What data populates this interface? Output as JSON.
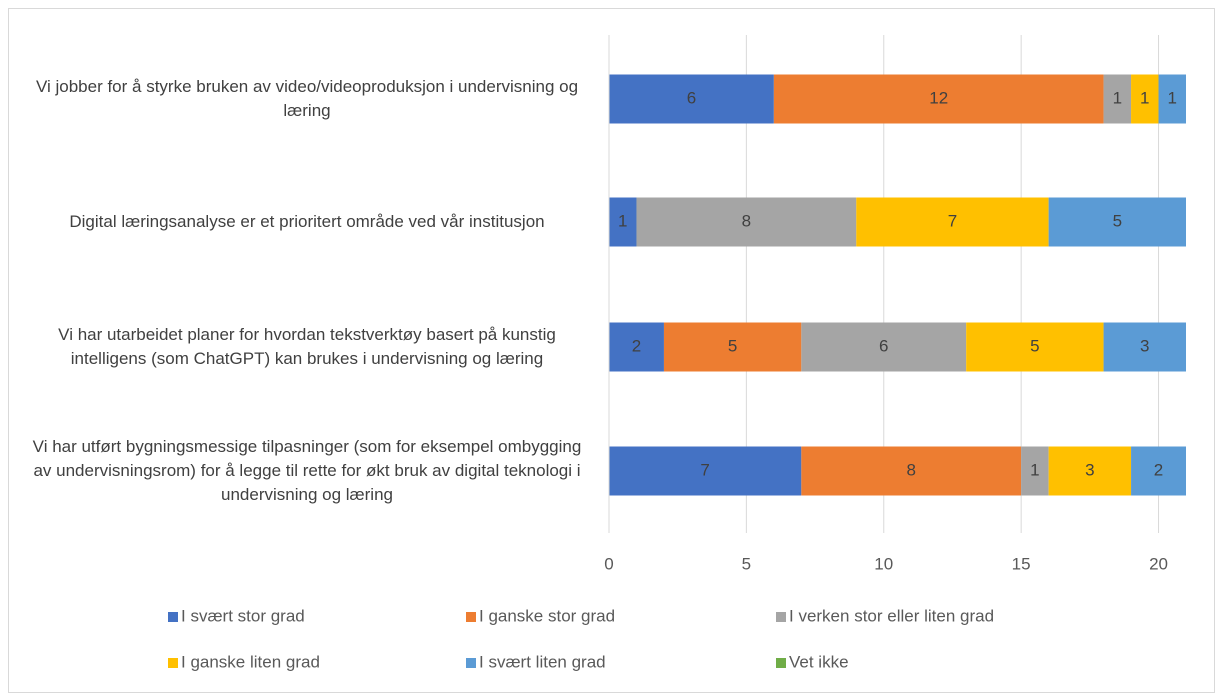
{
  "chart_data": {
    "type": "stacked-barh",
    "categories": [
      "Vi jobber for å styrke bruken av video/videoproduksjon i undervisning og læring",
      "Digital læringsanalyse er et prioritert område ved vår institusjon",
      "Vi har utarbeidet planer for hvordan tekstverktøy basert på kunstig intelligens (som ChatGPT) kan brukes i undervisning og læring",
      "Vi har utført bygningsmessige tilpasninger (som for eksempel ombygging av undervisningsrom) for å legge til rette for økt bruk av digital teknologi i undervisning og læring"
    ],
    "series": [
      {
        "name": "I svært stor grad",
        "color": "#4472c4",
        "values": [
          6,
          1,
          2,
          7
        ]
      },
      {
        "name": "I ganske stor grad",
        "color": "#ed7d31",
        "values": [
          12,
          0,
          5,
          8
        ]
      },
      {
        "name": "I verken stor eller liten grad",
        "color": "#a5a5a5",
        "values": [
          1,
          8,
          6,
          1
        ]
      },
      {
        "name": "I ganske liten grad",
        "color": "#ffc000",
        "values": [
          1,
          7,
          5,
          3
        ]
      },
      {
        "name": "I svært liten grad",
        "color": "#5b9bd5",
        "values": [
          1,
          5,
          3,
          2
        ]
      },
      {
        "name": "Vet ikke",
        "color": "#70ad47",
        "values": [
          0,
          0,
          0,
          0
        ]
      }
    ],
    "xlim": [
      0,
      21
    ],
    "xticks": [
      0,
      5,
      10,
      15,
      20
    ],
    "grid": true,
    "legend": "bottom"
  }
}
